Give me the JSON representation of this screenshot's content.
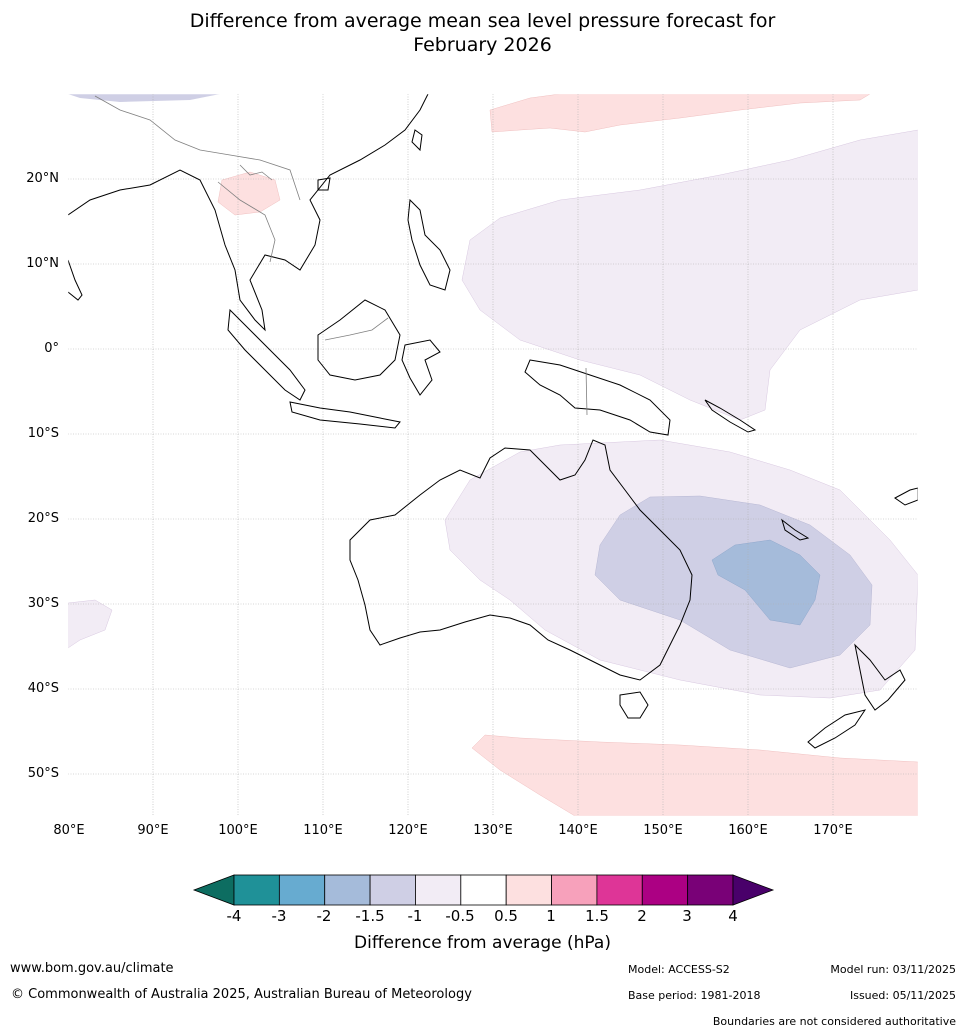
{
  "title_line1": "Difference from average mean sea level pressure forecast for",
  "title_line2": "February 2026",
  "map": {
    "lat_labels": [
      "20°N",
      "10°N",
      "0°",
      "10°S",
      "20°S",
      "30°S",
      "40°S",
      "50°S"
    ],
    "lon_labels": [
      "80°E",
      "90°E",
      "100°E",
      "110°E",
      "120°E",
      "130°E",
      "140°E",
      "150°E",
      "160°E",
      "170°E"
    ]
  },
  "colorbar": {
    "ticks": [
      "-4",
      "-3",
      "-2",
      "-1.5",
      "-1",
      "-0.5",
      "0.5",
      "1",
      "1.5",
      "2",
      "3",
      "4"
    ],
    "colors": [
      "#0d6d61",
      "#1f9198",
      "#67abd0",
      "#a5bbda",
      "#cfcfe5",
      "#f2ecf5",
      "#ffffff",
      "#fde0e0",
      "#f7a1bb",
      "#de3597",
      "#ac0083",
      "#790177",
      "#49006a"
    ],
    "label": "Difference from average (hPa)"
  },
  "footer": {
    "url": "www.bom.gov.au/climate",
    "copyright": "© Commonwealth of Australia 2025, Australian Bureau of Meteorology",
    "model": "Model: ACCESS-S2",
    "model_run": "Model run: 03/11/2025",
    "base_period": "Base period: 1981-2018",
    "issued": "Issued: 05/11/2025",
    "disclaimer": "Boundaries are not considered authoritative"
  }
}
